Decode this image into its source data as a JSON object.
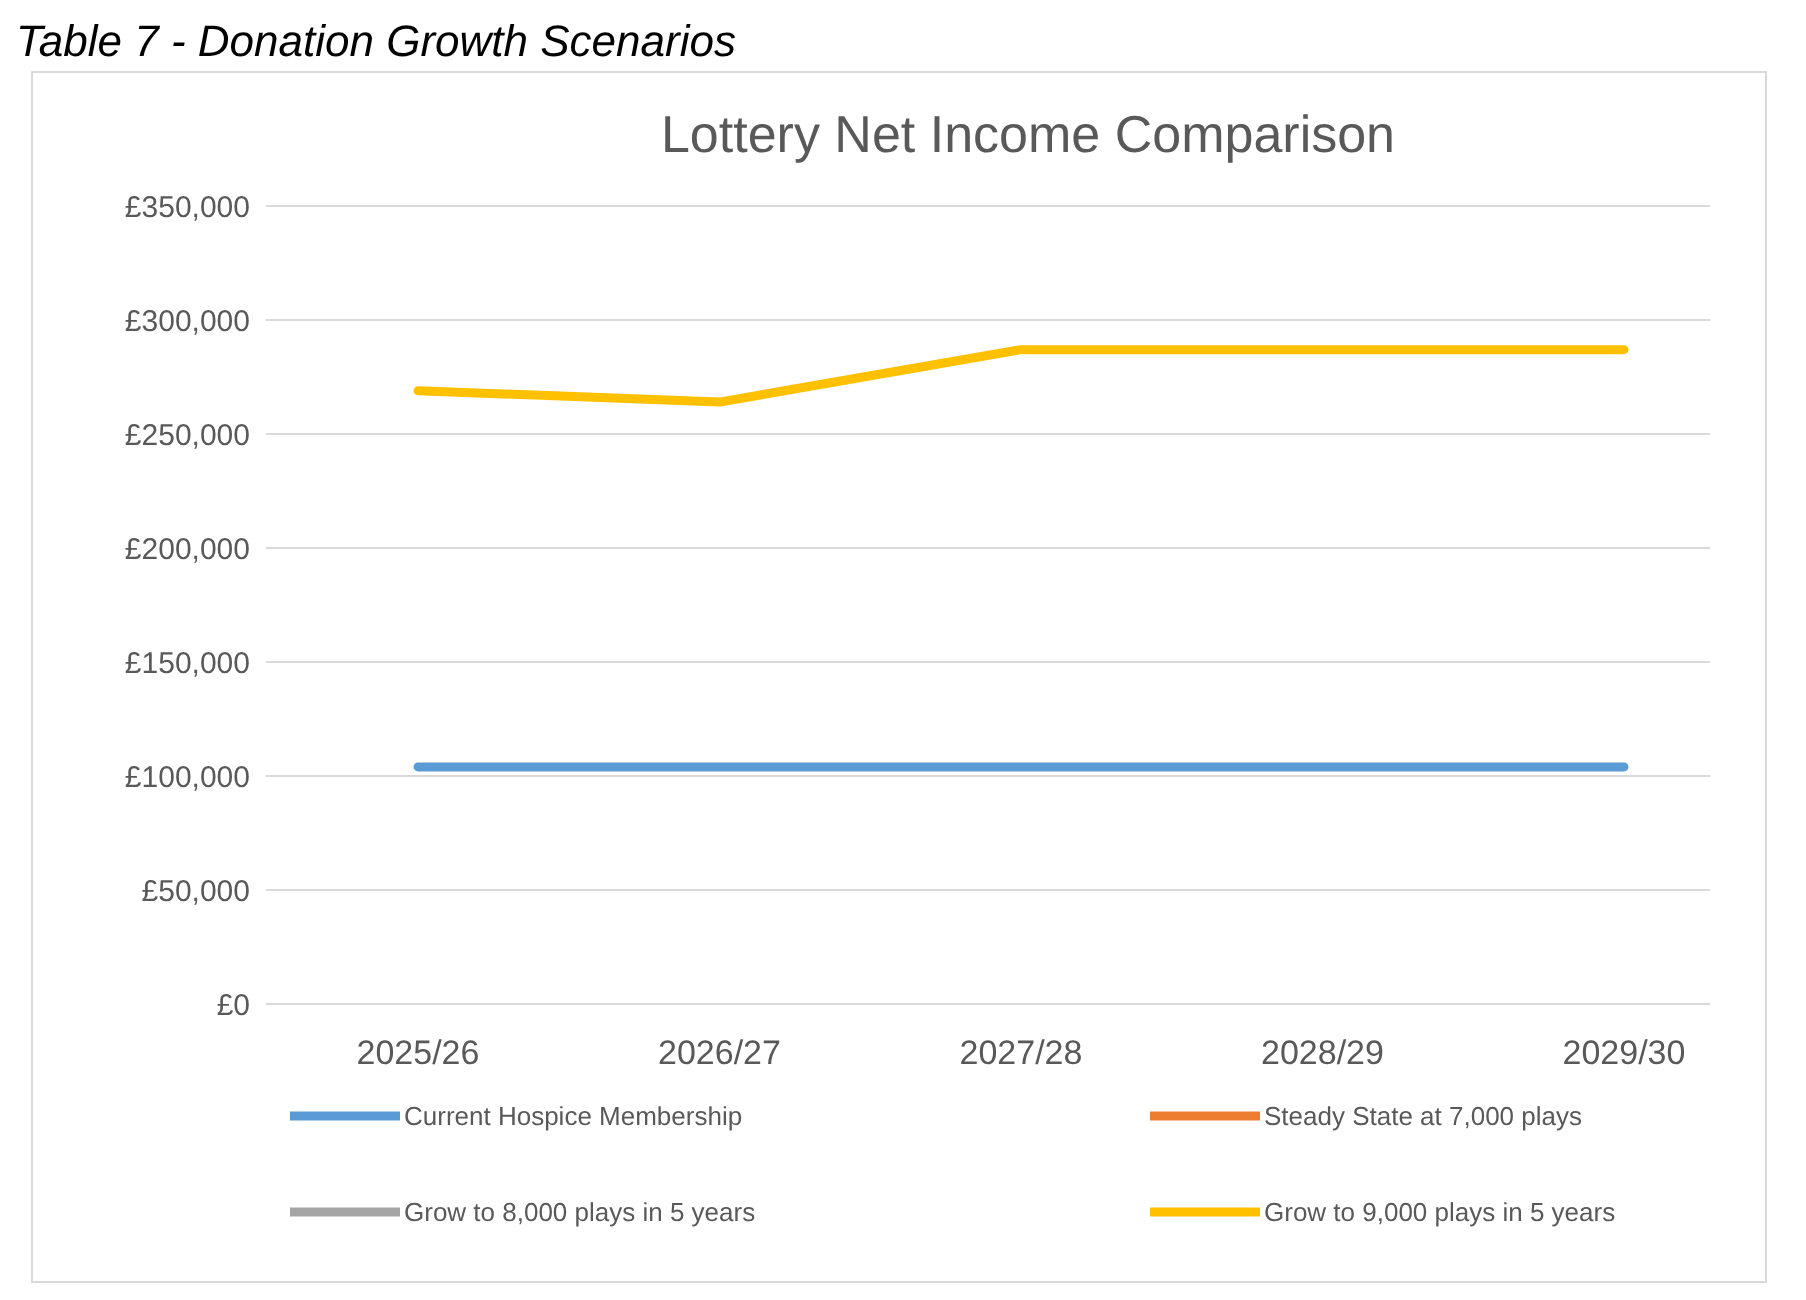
{
  "chart_data": {
    "type": "line",
    "title": "Lottery Net Income Comparison",
    "annotations": [
      "Table 7 - Donation Growth Scenarios"
    ],
    "categories": [
      "2025/26",
      "2026/27",
      "2027/28",
      "2028/29",
      "2029/30"
    ],
    "series": [
      {
        "name": "Current Hospice Membership",
        "color": "#5b9bd5",
        "values": [
          104000,
          104000,
          104000,
          104000,
          104000
        ]
      },
      {
        "name": "Steady State at 7,000 plays",
        "color": "#ed7d31",
        "values": [
          null,
          null,
          null,
          null,
          null
        ]
      },
      {
        "name": "Grow to 8,000 plays in 5 years",
        "color": "#a5a5a5",
        "values": [
          null,
          null,
          null,
          null,
          null
        ]
      },
      {
        "name": "Grow to 9,000 plays in 5 years",
        "color": "#ffc000",
        "values": [
          269000,
          264000,
          287000,
          287000,
          287000
        ]
      }
    ],
    "ylim": [
      0,
      350000
    ],
    "yticks": [
      {
        "value": 0,
        "label": "£0"
      },
      {
        "value": 50000,
        "label": "£50,000"
      },
      {
        "value": 100000,
        "label": "£100,000"
      },
      {
        "value": 150000,
        "label": "£150,000"
      },
      {
        "value": 200000,
        "label": "£200,000"
      },
      {
        "value": 250000,
        "label": "£250,000"
      },
      {
        "value": 300000,
        "label": "£300,000"
      },
      {
        "value": 350000,
        "label": "£350,000"
      }
    ],
    "grid": "y",
    "legend": "bottom",
    "line_style": "solid",
    "marker": "none"
  }
}
